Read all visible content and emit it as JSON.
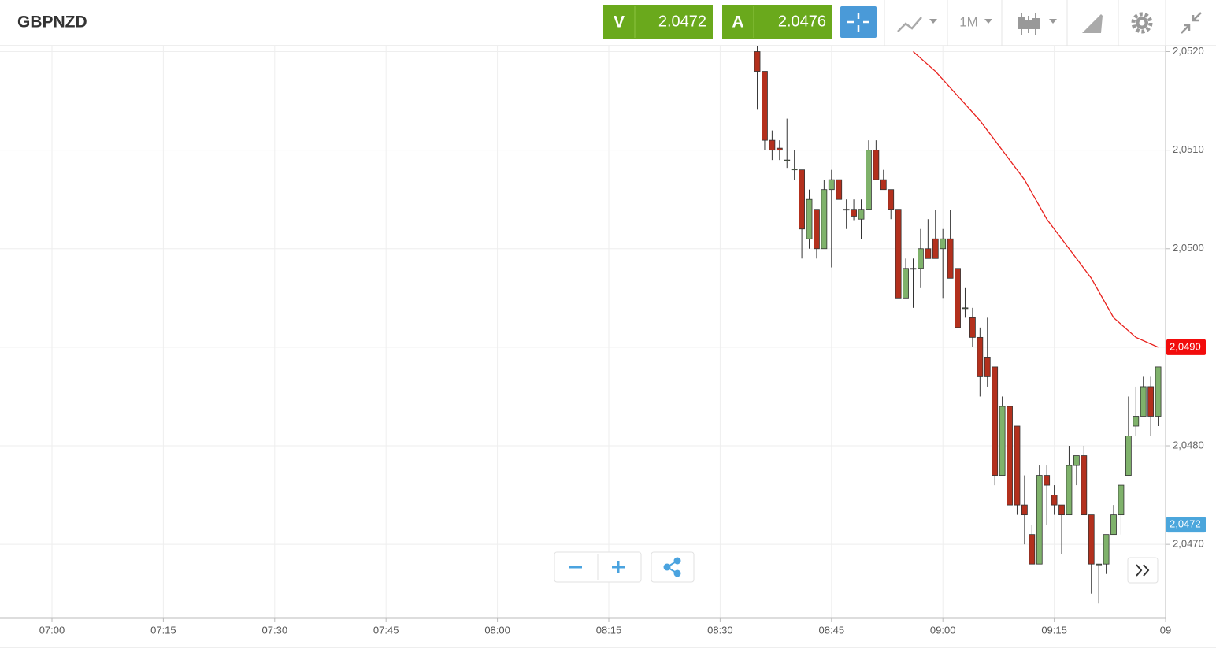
{
  "header": {
    "symbol": "GBPNZD",
    "sell": {
      "label": "V",
      "price": "2.0472"
    },
    "buy": {
      "label": "A",
      "price": "2.0476"
    },
    "timeframe": "1M"
  },
  "chart_data": {
    "type": "candlestick",
    "x": [
      "08:35",
      "08:36",
      "08:37",
      "08:38",
      "08:39",
      "08:40",
      "08:41",
      "08:42",
      "08:43",
      "08:44",
      "08:45",
      "08:46",
      "08:47",
      "08:48",
      "08:49",
      "08:50",
      "08:51",
      "08:52",
      "08:53",
      "08:54",
      "08:55",
      "08:56",
      "08:57",
      "08:58",
      "08:59",
      "09:00",
      "09:01",
      "09:02",
      "09:03",
      "09:04",
      "09:05",
      "09:06",
      "09:07",
      "09:08",
      "09:09",
      "09:10",
      "09:11",
      "09:12",
      "09:13",
      "09:14",
      "09:15",
      "09:16",
      "09:17",
      "09:18",
      "09:19",
      "09:20",
      "09:21",
      "09:22",
      "09:23",
      "09:24",
      "09:25",
      "09:26",
      "09:27",
      "09:28",
      "09:29"
    ],
    "open": [
      2.052,
      2.0518,
      2.0511,
      2.05102,
      2.0509,
      2.0508,
      2.0508,
      2.0501,
      2.0504,
      2.05,
      2.0506,
      2.0507,
      2.0504,
      2.0504,
      2.0503,
      2.0504,
      2.051,
      2.0507,
      2.0506,
      2.0504,
      2.0495,
      2.0498,
      2.0498,
      2.05,
      2.0501,
      2.05,
      2.0501,
      2.0498,
      2.0494,
      2.0493,
      2.0491,
      2.0489,
      2.0488,
      2.0477,
      2.0484,
      2.0482,
      2.0474,
      2.0471,
      2.0468,
      2.0477,
      2.0475,
      2.0474,
      2.0473,
      2.0478,
      2.0479,
      2.0473,
      2.0468,
      2.0468,
      2.0471,
      2.0473,
      2.0477,
      2.0482,
      2.0483,
      2.0486,
      2.0483
    ],
    "high": [
      2.05206,
      2.0518,
      2.0512,
      2.0511,
      2.05132,
      2.051,
      2.0508,
      2.0506,
      2.0504,
      2.0507,
      2.0508,
      2.0507,
      2.0505,
      2.0505,
      2.0505,
      2.0511,
      2.0511,
      2.0508,
      2.0506,
      2.0504,
      2.0499,
      2.0499,
      2.0502,
      2.0503,
      2.05039,
      2.0502,
      2.05039,
      2.0498,
      2.0496,
      2.0494,
      2.0492,
      2.0493,
      2.0488,
      2.0485,
      2.0484,
      2.0482,
      2.0477,
      2.0472,
      2.0478,
      2.0478,
      2.0476,
      2.0474,
      2.048,
      2.0479,
      2.048,
      2.0473,
      2.0468,
      2.0471,
      2.0474,
      2.0476,
      2.0485,
      2.0486,
      2.0487,
      2.0487,
      2.0488
    ],
    "low": [
      2.05141,
      2.051,
      2.0509,
      2.0509,
      2.05082,
      2.0507,
      2.0499,
      2.05,
      2.0499,
      2.05,
      2.04981,
      2.0505,
      2.0502,
      2.05029,
      2.0501,
      2.0504,
      2.0507,
      2.0506,
      2.0503,
      2.0495,
      2.0495,
      2.0494,
      2.0496,
      2.0499,
      2.0499,
      2.0495,
      2.0497,
      2.0492,
      2.0493,
      2.049,
      2.0485,
      2.0486,
      2.0476,
      2.0477,
      2.0474,
      2.0473,
      2.047,
      2.0468,
      2.0468,
      2.0472,
      2.0473,
      2.0469,
      2.0473,
      2.0476,
      2.0473,
      2.0465,
      2.0464,
      2.0467,
      2.0471,
      2.0471,
      2.0477,
      2.0481,
      2.0483,
      2.0481,
      2.0482
    ],
    "close": [
      2.0518,
      2.0511,
      2.051,
      2.051,
      2.0509,
      2.05081,
      2.0502,
      2.0505,
      2.05,
      2.0506,
      2.0507,
      2.0505,
      2.0504,
      2.05033,
      2.0504,
      2.051,
      2.0507,
      2.0506,
      2.0504,
      2.0495,
      2.0498,
      2.0498,
      2.05,
      2.0499,
      2.0499,
      2.0501,
      2.0497,
      2.0492,
      2.0494,
      2.0491,
      2.0487,
      2.0487,
      2.0477,
      2.0484,
      2.0474,
      2.0474,
      2.0473,
      2.0468,
      2.0477,
      2.0476,
      2.0474,
      2.0473,
      2.0478,
      2.0479,
      2.0473,
      2.0468,
      2.0468,
      2.0471,
      2.0473,
      2.0476,
      2.0481,
      2.0483,
      2.0486,
      2.0483,
      2.0488
    ],
    "up_color": "#7fb26b",
    "down_color": "#b3301d",
    "overlay": {
      "color": "#e8201c",
      "x": [
        "08:56",
        "08:59",
        "09:02",
        "09:05",
        "09:08",
        "09:11",
        "09:14",
        "09:17",
        "09:20",
        "09:23",
        "09:26",
        "09:29"
      ],
      "values": [
        2.052,
        2.0518,
        2.05155,
        2.0513,
        2.051,
        2.0507,
        2.0503,
        2.05,
        2.0497,
        2.0493,
        2.0491,
        2.049
      ]
    },
    "price_labels": [
      {
        "value": 2.049,
        "label": "2,0490",
        "color": "#f20c0c"
      },
      {
        "value": 2.0472,
        "label": "2,0472",
        "color": "#4ba6dc"
      }
    ],
    "xlim": [
      "06:53",
      "09:30"
    ],
    "xticks": [
      "07:00",
      "07:15",
      "07:30",
      "07:45",
      "08:00",
      "08:15",
      "08:30",
      "08:45",
      "09:00",
      "09:15",
      {
        "value": "09:30",
        "label": "09"
      }
    ],
    "ylim": [
      2.04625,
      2.05206
    ],
    "yticks": [
      {
        "value": 2.052,
        "label": "2,0520"
      },
      {
        "value": 2.051,
        "label": "2,0510"
      },
      {
        "value": 2.05,
        "label": "2,0500"
      },
      {
        "value": 2.049,
        "label": "2,0490"
      },
      {
        "value": 2.048,
        "label": "2,0480"
      },
      {
        "value": 2.047,
        "label": "2,0470"
      }
    ],
    "grid": true
  }
}
